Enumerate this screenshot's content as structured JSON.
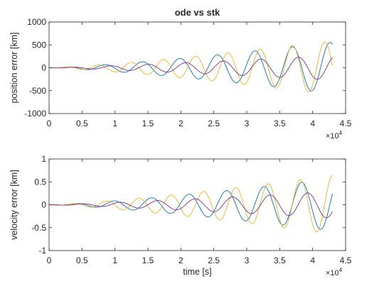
{
  "chart_data": [
    {
      "type": "line",
      "title": "ode vs stk",
      "xlabel": "",
      "ylabel": "position error [km]",
      "xlim": [
        0,
        45000
      ],
      "ylim": [
        -1000,
        1000
      ],
      "x_ticks": [
        "0",
        "0.5",
        "1",
        "1.5",
        "2",
        "2.5",
        "3",
        "3.5",
        "4",
        "4.5"
      ],
      "y_ticks": [
        "1000",
        "500",
        "0",
        "-500",
        "-1000"
      ],
      "x_exponent_base": "×10",
      "x_exponent": "4",
      "grid": false,
      "series_model": "damped oscillation: y = A * (t/43000)^p * sin(2*pi*(t - t0)/P)",
      "series": [
        {
          "color": "#0072BD",
          "amplitude_km": 560,
          "growth_power": 1.3,
          "period_s": 5700,
          "phase_t0_s": 1300,
          "x_range": [
            0,
            43000
          ]
        },
        {
          "color": "#D95319",
          "amplitude_km": 560,
          "growth_power": 1.3,
          "period_s": 5700,
          "phase_t0_s": 1300,
          "x_range": [
            0,
            4000
          ]
        },
        {
          "color": "#EDB120",
          "amplitude_km": 590,
          "growth_power": 1.3,
          "period_s": 4900,
          "phase_t0_s": 1400,
          "x_range": [
            0,
            43000
          ]
        },
        {
          "color": "#7E2F8E",
          "amplitude_km": 270,
          "growth_power": 1.2,
          "period_s": 5700,
          "phase_t0_s": 2200,
          "x_range": [
            0,
            43000
          ]
        }
      ]
    },
    {
      "type": "line",
      "title": "",
      "xlabel": "time [s]",
      "ylabel": "velocity error [km]",
      "xlim": [
        0,
        45000
      ],
      "ylim": [
        -1,
        1
      ],
      "x_ticks": [
        "0",
        "0.5",
        "1",
        "1.5",
        "2",
        "2.5",
        "3",
        "3.5",
        "4",
        "4.5"
      ],
      "y_ticks": [
        "1",
        "0.5",
        "0",
        "-0.5",
        "-1"
      ],
      "x_exponent_base": "×10",
      "x_exponent": "4",
      "grid": false,
      "series_model": "damped oscillation: y = A * (t/43000)^p * sin(2*pi*(t - t0)/P)",
      "series": [
        {
          "color": "#0072BD",
          "amplitude_km": 0.57,
          "growth_power": 1.3,
          "period_s": 5700,
          "phase_t0_s": 2700,
          "x_range": [
            0,
            43000
          ]
        },
        {
          "color": "#D95319",
          "amplitude_km": 0.57,
          "growth_power": 1.3,
          "period_s": 5700,
          "phase_t0_s": 2700,
          "x_range": [
            0,
            4000
          ]
        },
        {
          "color": "#EDB120",
          "amplitude_km": 0.64,
          "growth_power": 1.3,
          "period_s": 4900,
          "phase_t0_s": 2600,
          "x_range": [
            0,
            43000
          ]
        },
        {
          "color": "#7E2F8E",
          "amplitude_km": 0.29,
          "growth_power": 1.2,
          "period_s": 5700,
          "phase_t0_s": 3600,
          "x_range": [
            0,
            43000
          ]
        }
      ]
    }
  ]
}
